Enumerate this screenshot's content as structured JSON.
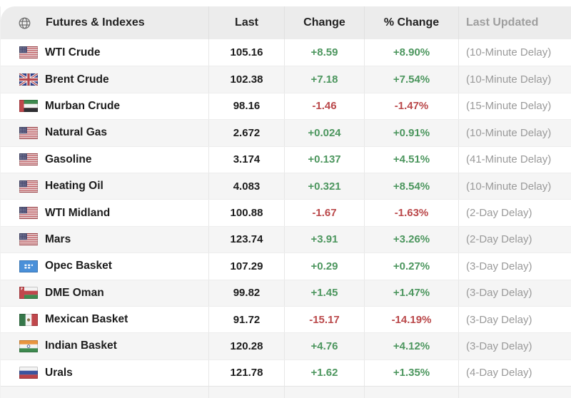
{
  "header": {
    "name_col": "Futures & Indexes",
    "last_col": "Last",
    "change_col": "Change",
    "pct_change_col": "% Change",
    "last_updated_col": "Last Updated",
    "globe_icon": "globe-icon"
  },
  "colors": {
    "positive": "#4c965e",
    "negative": "#ba484a",
    "header_bg": "#ececec",
    "alt_row_bg": "#f5f5f5",
    "muted_text": "#9a9a9a",
    "text": "#1c1c1c"
  },
  "rows": [
    {
      "name": "WTI Crude",
      "flag_icon": "us-flag",
      "last": "105.16",
      "change": "+8.59",
      "pct": "+8.90%",
      "updated": "(10-Minute Delay)",
      "direction": "up"
    },
    {
      "name": "Brent Crude",
      "flag_icon": "uk-flag",
      "last": "102.38",
      "change": "+7.18",
      "pct": "+7.54%",
      "updated": "(10-Minute Delay)",
      "direction": "up"
    },
    {
      "name": "Murban Crude",
      "flag_icon": "uae-flag",
      "last": "98.16",
      "change": "-1.46",
      "pct": "-1.47%",
      "updated": "(15-Minute Delay)",
      "direction": "down"
    },
    {
      "name": "Natural Gas",
      "flag_icon": "us-flag",
      "last": "2.672",
      "change": "+0.024",
      "pct": "+0.91%",
      "updated": "(10-Minute Delay)",
      "direction": "up"
    },
    {
      "name": "Gasoline",
      "flag_icon": "us-flag",
      "last": "3.174",
      "change": "+0.137",
      "pct": "+4.51%",
      "updated": "(41-Minute Delay)",
      "direction": "up"
    },
    {
      "name": "Heating Oil",
      "flag_icon": "us-flag",
      "last": "4.083",
      "change": "+0.321",
      "pct": "+8.54%",
      "updated": "(10-Minute Delay)",
      "direction": "up"
    },
    {
      "name": "WTI Midland",
      "flag_icon": "us-flag",
      "last": "100.88",
      "change": "-1.67",
      "pct": "-1.63%",
      "updated": "(2-Day Delay)",
      "direction": "down"
    },
    {
      "name": "Mars",
      "flag_icon": "us-flag",
      "last": "123.74",
      "change": "+3.91",
      "pct": "+3.26%",
      "updated": "(2-Day Delay)",
      "direction": "up"
    },
    {
      "name": "Opec Basket",
      "flag_icon": "opec-flag",
      "last": "107.29",
      "change": "+0.29",
      "pct": "+0.27%",
      "updated": "(3-Day Delay)",
      "direction": "up"
    },
    {
      "name": "DME Oman",
      "flag_icon": "oman-flag",
      "last": "99.82",
      "change": "+1.45",
      "pct": "+1.47%",
      "updated": "(3-Day Delay)",
      "direction": "up"
    },
    {
      "name": "Mexican Basket",
      "flag_icon": "mexico-flag",
      "last": "91.72",
      "change": "-15.17",
      "pct": "-14.19%",
      "updated": "(3-Day Delay)",
      "direction": "down"
    },
    {
      "name": "Indian Basket",
      "flag_icon": "india-flag",
      "last": "120.28",
      "change": "+4.76",
      "pct": "+4.12%",
      "updated": "(3-Day Delay)",
      "direction": "up"
    },
    {
      "name": "Urals",
      "flag_icon": "russia-flag",
      "last": "121.78",
      "change": "+1.62",
      "pct": "+1.35%",
      "updated": "(4-Day Delay)",
      "direction": "up"
    }
  ]
}
